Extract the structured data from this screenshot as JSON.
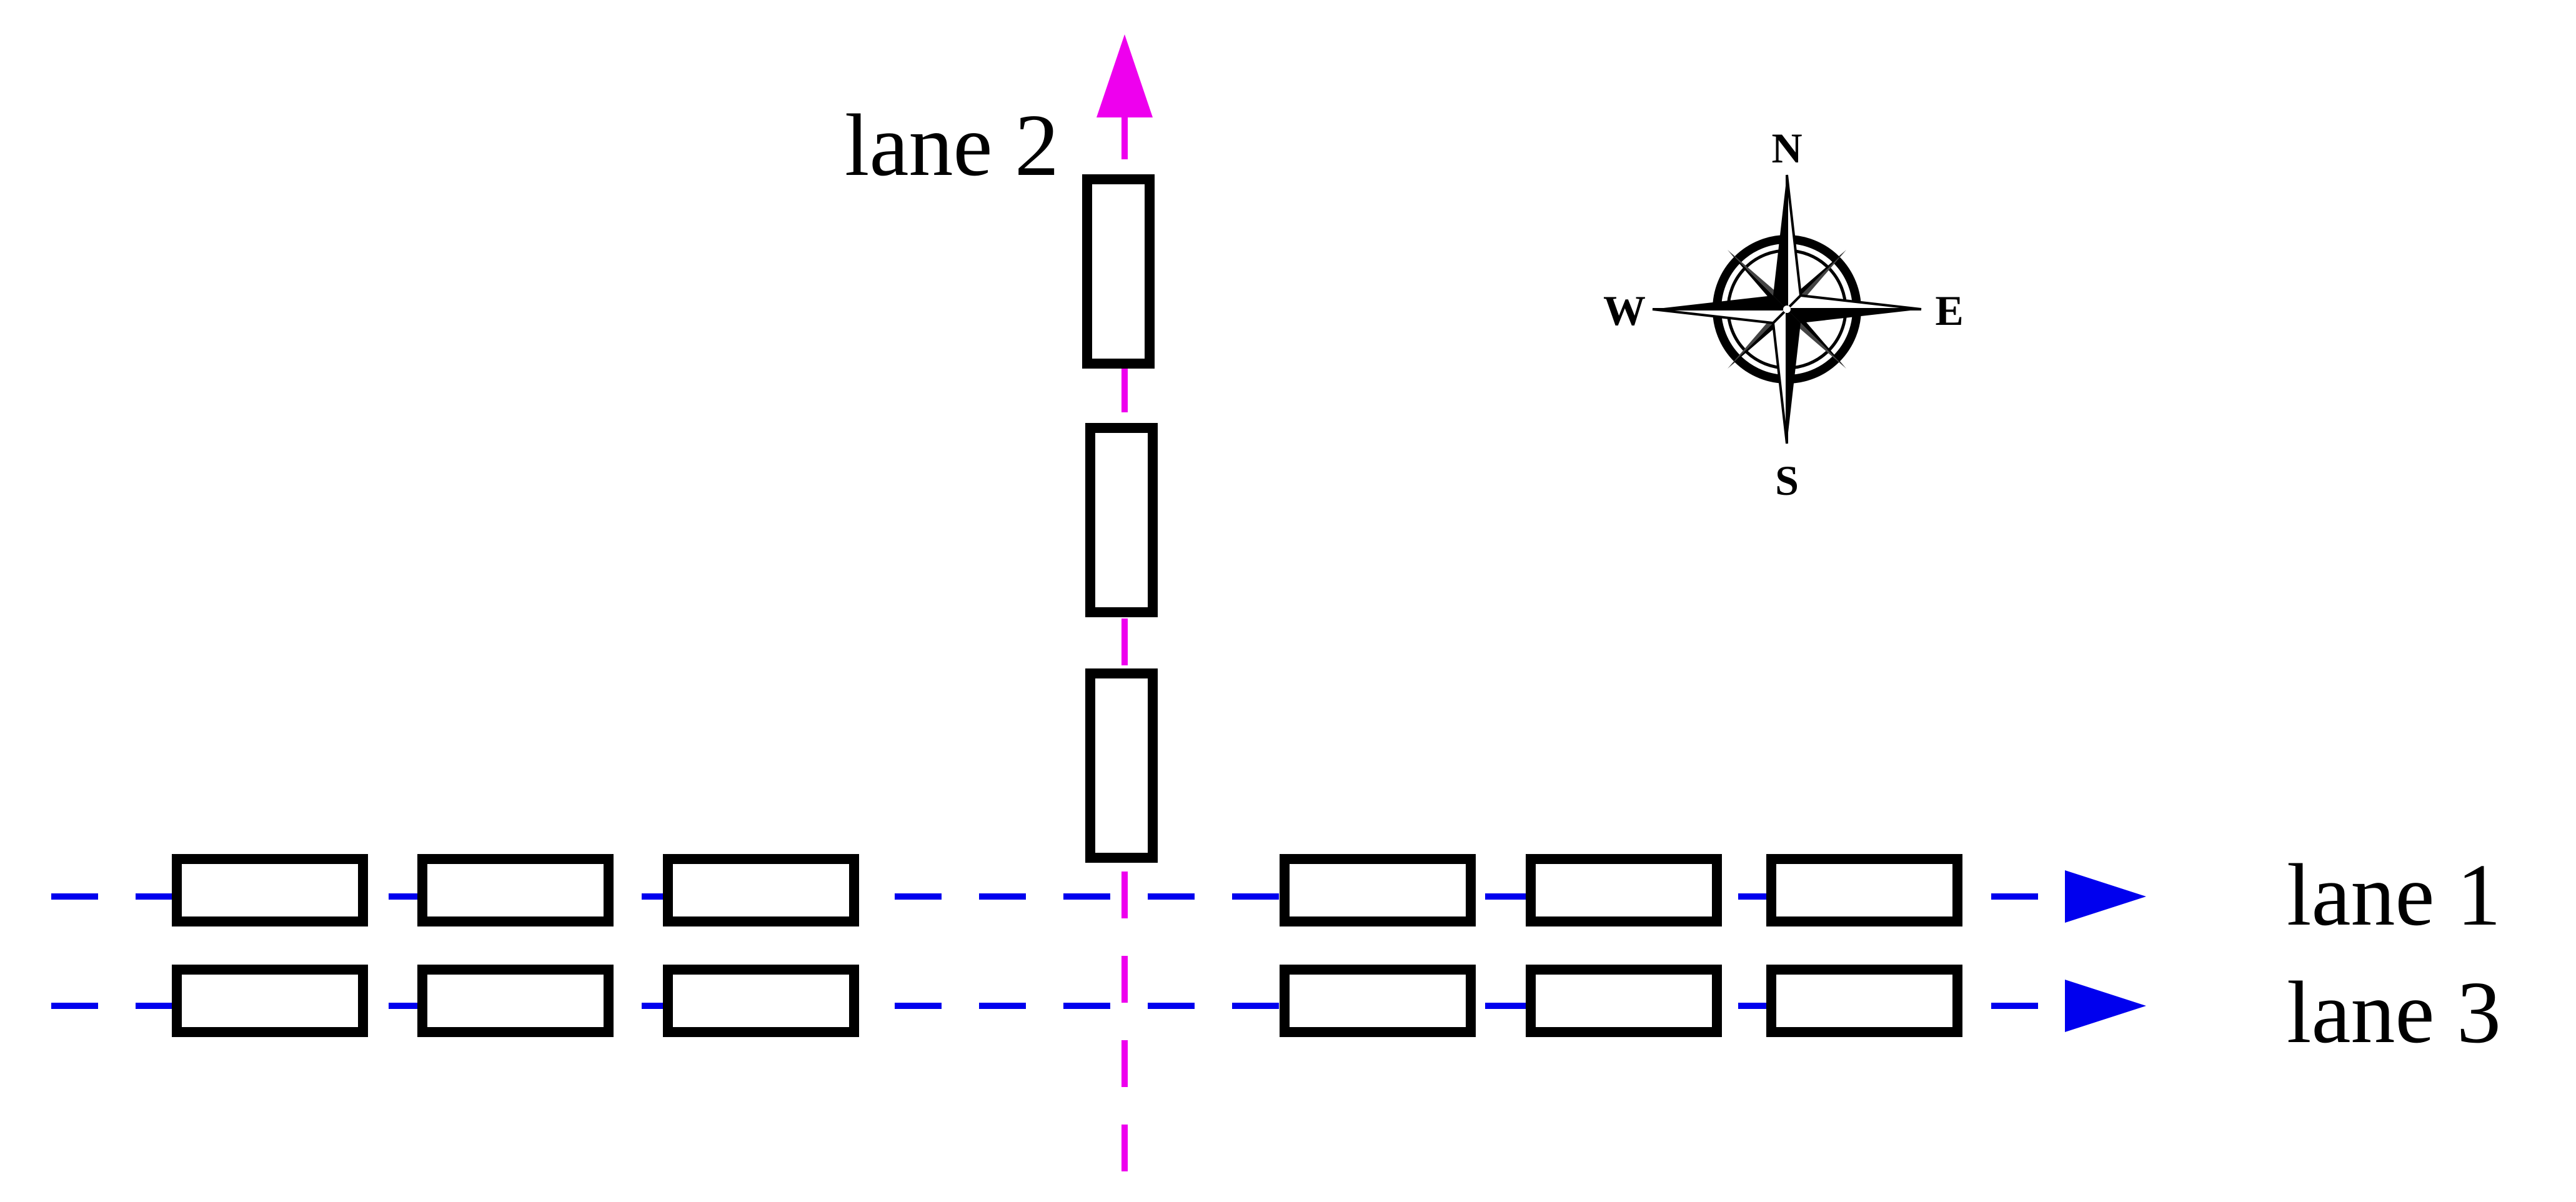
{
  "lanes": [
    {
      "id": "lane1",
      "label": "lane 1",
      "color": "#0000ee",
      "direction": "east"
    },
    {
      "id": "lane2",
      "label": "lane 2",
      "color": "#ee00ee",
      "direction": "north"
    },
    {
      "id": "lane3",
      "label": "lane 3",
      "color": "#0000ee",
      "direction": "east"
    }
  ],
  "compass": {
    "north": "N",
    "south": "S",
    "east": "E",
    "west": "W"
  },
  "colors": {
    "vehicle_outline": "#000000",
    "horizontal_lane": "#0000ee",
    "vertical_lane": "#ee00ee"
  }
}
